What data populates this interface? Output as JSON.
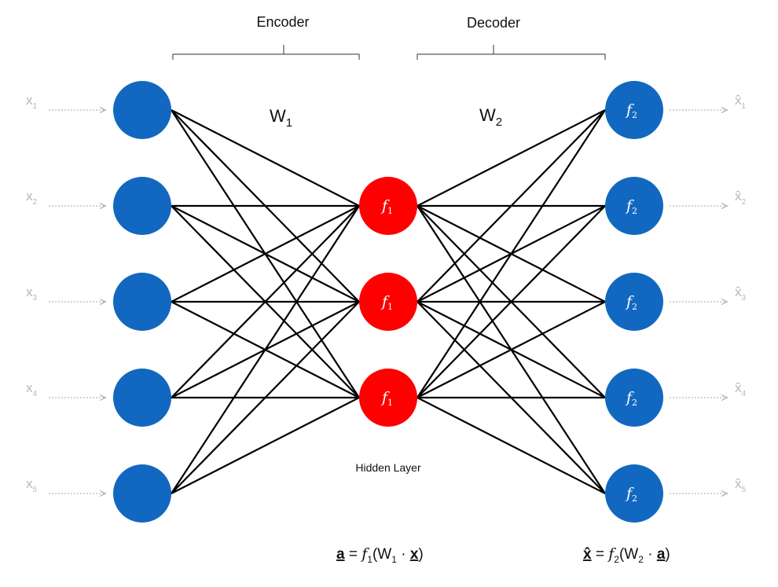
{
  "colors": {
    "input_node": "#1268c0",
    "hidden_node": "#ff0000",
    "output_node": "#1268c0",
    "edge": "#000000",
    "arrow": "#a6a6a6"
  },
  "sections": {
    "encoder_label": "Encoder",
    "decoder_label": "Decoder"
  },
  "weights": {
    "w1": {
      "base": "W",
      "sub": "1"
    },
    "w2": {
      "base": "W",
      "sub": "2"
    }
  },
  "inputs": [
    {
      "base": "x",
      "sub": "1"
    },
    {
      "base": "x",
      "sub": "2"
    },
    {
      "base": "x",
      "sub": "3"
    },
    {
      "base": "x",
      "sub": "4"
    },
    {
      "base": "x",
      "sub": "5"
    }
  ],
  "hidden_nodes": [
    {
      "fn": "f",
      "sub": "1"
    },
    {
      "fn": "f",
      "sub": "1"
    },
    {
      "fn": "f",
      "sub": "1"
    }
  ],
  "output_nodes": [
    {
      "fn": "f",
      "sub": "2"
    },
    {
      "fn": "f",
      "sub": "2"
    },
    {
      "fn": "f",
      "sub": "2"
    },
    {
      "fn": "f",
      "sub": "2"
    },
    {
      "fn": "f",
      "sub": "2"
    }
  ],
  "outputs": [
    {
      "base": "x̂",
      "sub": "1"
    },
    {
      "base": "x̂",
      "sub": "2"
    },
    {
      "base": "x̂",
      "sub": "3"
    },
    {
      "base": "x̂",
      "sub": "4"
    },
    {
      "base": "x̂",
      "sub": "5"
    }
  ],
  "hidden_layer_label": "Hidden Layer",
  "equations": {
    "encoder": {
      "lhs": "a",
      "eq": " = ",
      "fn": "f",
      "fn_sub": "1",
      "open": "(W",
      "w_sub": "1",
      "dot": " · ",
      "arg": "x",
      "close": ")"
    },
    "decoder": {
      "lhs": "x̂",
      "eq": " = ",
      "fn": "f",
      "fn_sub": "2",
      "open": "(W",
      "w_sub": "2",
      "dot": " · ",
      "arg": "a",
      "close": ")"
    }
  }
}
